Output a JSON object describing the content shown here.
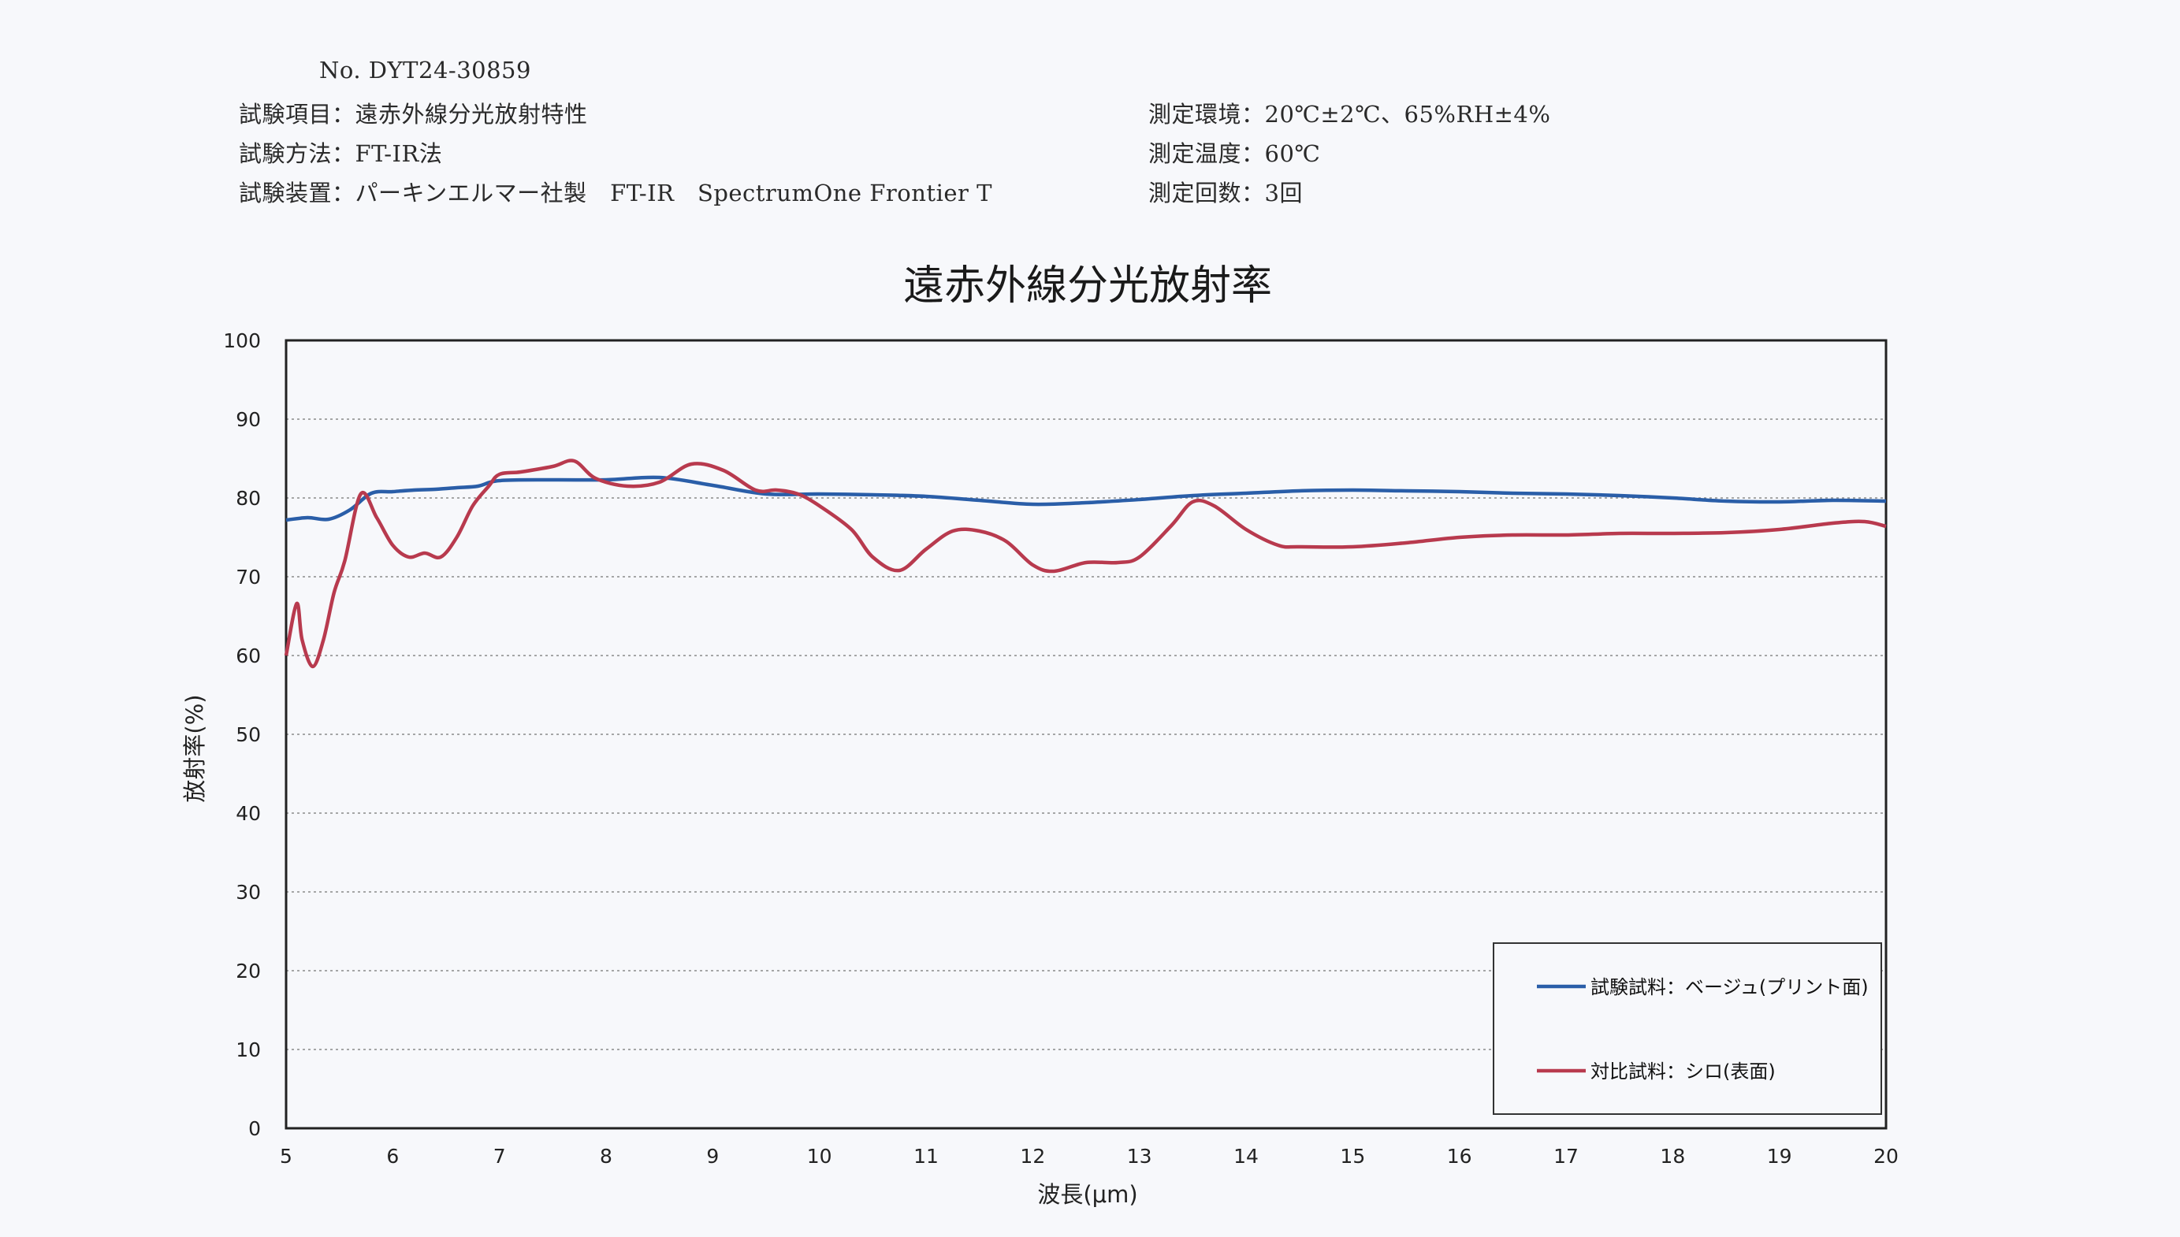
{
  "header": {
    "doc_no": "No. DYT24-30859",
    "test_item": "試験項目：遠赤外線分光放射特性",
    "test_method": "試験方法：FT-IR法",
    "test_device": "試験装置：パーキンエルマー社製　FT-IR　SpectrumOne Frontier T",
    "env": "測定環境：20℃±2℃、65%RH±4%",
    "temp": "測定温度：60℃",
    "count": "測定回数：3回"
  },
  "chart_data": {
    "type": "line",
    "title": "遠赤外線分光放射率",
    "xlabel": "波長(μm)",
    "ylabel": "放射率(%)",
    "xlim": [
      5,
      20
    ],
    "ylim": [
      0,
      100
    ],
    "xticks": [
      5,
      6,
      7,
      8,
      9,
      10,
      11,
      12,
      13,
      14,
      15,
      16,
      17,
      18,
      19,
      20
    ],
    "yticks": [
      0,
      10,
      20,
      30,
      40,
      50,
      60,
      70,
      80,
      90,
      100
    ],
    "grid": "horizontal",
    "legend_position": "bottom-right",
    "series": [
      {
        "name": "試験試料：ベージュ(プリント面)",
        "color": "#2a5ea8",
        "x": [
          5.0,
          5.2,
          5.4,
          5.6,
          5.8,
          6.0,
          6.2,
          6.4,
          6.6,
          6.8,
          7.0,
          7.5,
          8.0,
          8.5,
          9.0,
          9.5,
          10.0,
          10.5,
          11.0,
          11.5,
          12.0,
          12.5,
          13.0,
          13.5,
          14.0,
          14.5,
          15.0,
          15.5,
          16.0,
          16.5,
          17.0,
          17.5,
          18.0,
          18.5,
          19.0,
          19.5,
          20.0
        ],
        "y": [
          77.2,
          77.5,
          77.3,
          78.5,
          80.6,
          80.8,
          81.0,
          81.1,
          81.3,
          81.5,
          82.2,
          82.3,
          82.3,
          82.6,
          81.6,
          80.5,
          80.5,
          80.4,
          80.2,
          79.7,
          79.2,
          79.4,
          79.8,
          80.3,
          80.6,
          80.9,
          81.0,
          80.9,
          80.8,
          80.6,
          80.5,
          80.3,
          80.0,
          79.6,
          79.5,
          79.7,
          79.6
        ]
      },
      {
        "name": "対比試料：シロ(表面)",
        "color": "#b83a4e",
        "x": [
          5.0,
          5.1,
          5.15,
          5.25,
          5.35,
          5.45,
          5.55,
          5.7,
          5.85,
          6.0,
          6.15,
          6.3,
          6.45,
          6.6,
          6.75,
          6.9,
          7.0,
          7.2,
          7.5,
          7.7,
          7.9,
          8.2,
          8.5,
          8.8,
          9.1,
          9.4,
          9.6,
          9.8,
          10.0,
          10.3,
          10.5,
          10.75,
          11.0,
          11.25,
          11.5,
          11.75,
          12.0,
          12.2,
          12.5,
          12.8,
          13.0,
          13.3,
          13.5,
          13.7,
          14.0,
          14.3,
          14.5,
          15.0,
          15.5,
          16.0,
          16.5,
          17.0,
          17.5,
          18.0,
          18.5,
          19.0,
          19.5,
          19.8,
          20.0
        ],
        "y": [
          60.0,
          66.6,
          62.0,
          58.6,
          62.0,
          68.0,
          72.0,
          80.5,
          77.5,
          74.0,
          72.5,
          73.0,
          72.5,
          75.0,
          79.0,
          81.5,
          83.0,
          83.3,
          84.0,
          84.7,
          82.5,
          81.5,
          82.0,
          84.3,
          83.5,
          81.0,
          81.0,
          80.5,
          79.0,
          76.0,
          72.5,
          70.8,
          73.5,
          75.8,
          75.8,
          74.5,
          71.5,
          70.7,
          71.8,
          71.8,
          72.5,
          76.5,
          79.5,
          79.0,
          76.0,
          74.0,
          73.8,
          73.8,
          74.3,
          75.0,
          75.3,
          75.3,
          75.5,
          75.5,
          75.6,
          76.0,
          76.8,
          77.0,
          76.4
        ]
      }
    ]
  }
}
